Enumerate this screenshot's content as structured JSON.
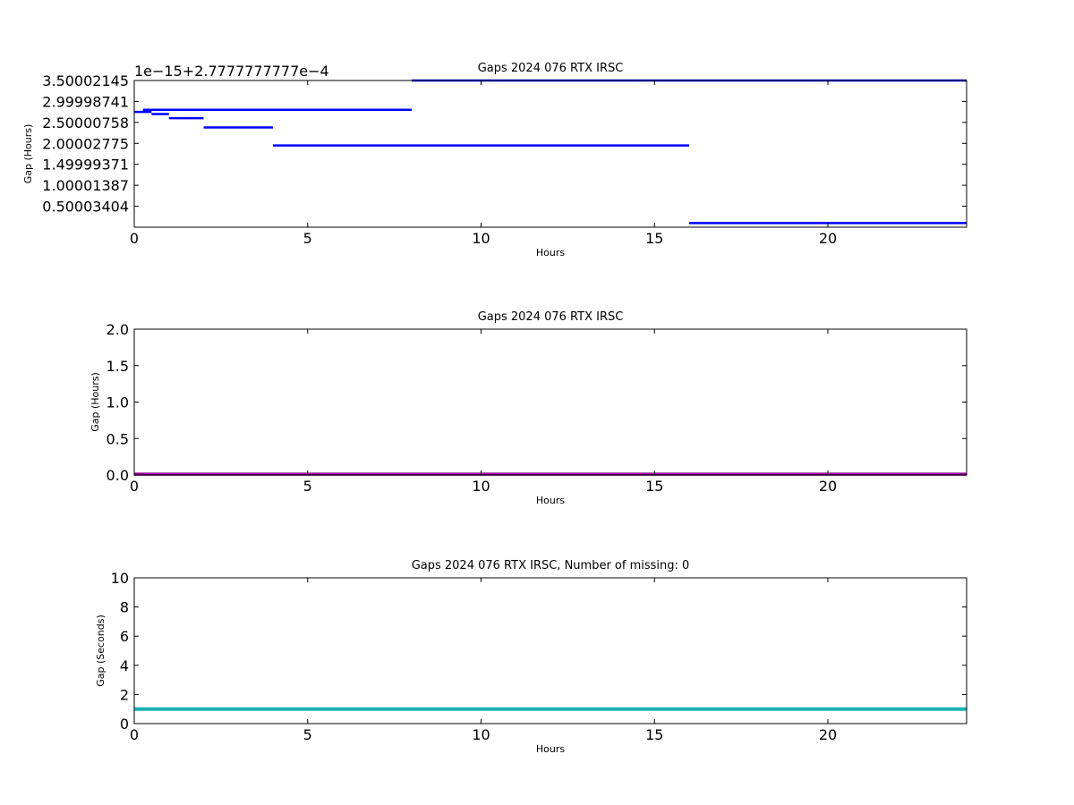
{
  "chart_data": [
    {
      "type": "line",
      "title": "Gaps 2024 076 RTX  IRSC",
      "xlabel": "Hours",
      "ylabel": "Gap (Hours)",
      "offset_label": "1e−15+2.7777777777e−4",
      "xlim": [
        0,
        24
      ],
      "ylim": [
        0,
        3.5
      ],
      "xticks": [
        0,
        5,
        10,
        15,
        20
      ],
      "xtick_labels": [
        "0",
        "5",
        "10",
        "15",
        "20"
      ],
      "yticks": [
        0.50003404,
        1.00001387,
        1.49999371,
        2.00002775,
        2.50000758,
        2.99998741,
        3.50002145
      ],
      "ytick_labels": [
        "0.50003404",
        "1.00001387",
        "1.49999371",
        "2.00002775",
        "2.50000758",
        "2.99998741",
        "3.50002145"
      ],
      "grid": false,
      "color": "#0000ff",
      "series": [
        {
          "segments": [
            {
              "x": [
                0,
                0.5
              ],
              "y": 2.75
            },
            {
              "x": [
                0.25,
                8
              ],
              "y": 2.8
            },
            {
              "x": [
                0.5,
                1
              ],
              "y": 2.7
            },
            {
              "x": [
                1,
                2
              ],
              "y": 2.6
            },
            {
              "x": [
                2,
                4
              ],
              "y": 2.38
            },
            {
              "x": [
                4,
                8
              ],
              "y": 1.95
            },
            {
              "x": [
                8,
                16
              ],
              "y": 1.95
            },
            {
              "x": [
                8,
                24
              ],
              "y": 3.5
            },
            {
              "x": [
                16,
                24
              ],
              "y": 0.1
            }
          ]
        }
      ]
    },
    {
      "type": "line",
      "title": "Gaps 2024 076 RTX  IRSC",
      "xlabel": "Hours",
      "ylabel": "Gap (Hours)",
      "xlim": [
        0,
        24
      ],
      "ylim": [
        0,
        2.0
      ],
      "xticks": [
        0,
        5,
        10,
        15,
        20
      ],
      "xtick_labels": [
        "0",
        "5",
        "10",
        "15",
        "20"
      ],
      "yticks": [
        0,
        0.5,
        1.0,
        1.5,
        2.0
      ],
      "ytick_labels": [
        "0.0",
        "0.5",
        "1.0",
        "1.5",
        "2.0"
      ],
      "grid": false,
      "color": "#990099",
      "series": [
        {
          "x": [
            0,
            24
          ],
          "y": [
            0.01,
            0.01
          ]
        }
      ]
    },
    {
      "type": "line",
      "title": "Gaps 2024 076 RTX  IRSC, Number of missing: 0",
      "xlabel": "Hours",
      "ylabel": "Gap (Seconds)",
      "xlim": [
        0,
        24
      ],
      "ylim": [
        0,
        10
      ],
      "xticks": [
        0,
        5,
        10,
        15,
        20
      ],
      "xtick_labels": [
        "0",
        "5",
        "10",
        "15",
        "20"
      ],
      "yticks": [
        0,
        2,
        4,
        6,
        8,
        10
      ],
      "ytick_labels": [
        "0",
        "2",
        "4",
        "6",
        "8",
        "10"
      ],
      "grid": false,
      "color": "#1ab3b3",
      "series": [
        {
          "x": [
            0,
            24
          ],
          "y": [
            1,
            1
          ]
        }
      ]
    }
  ]
}
